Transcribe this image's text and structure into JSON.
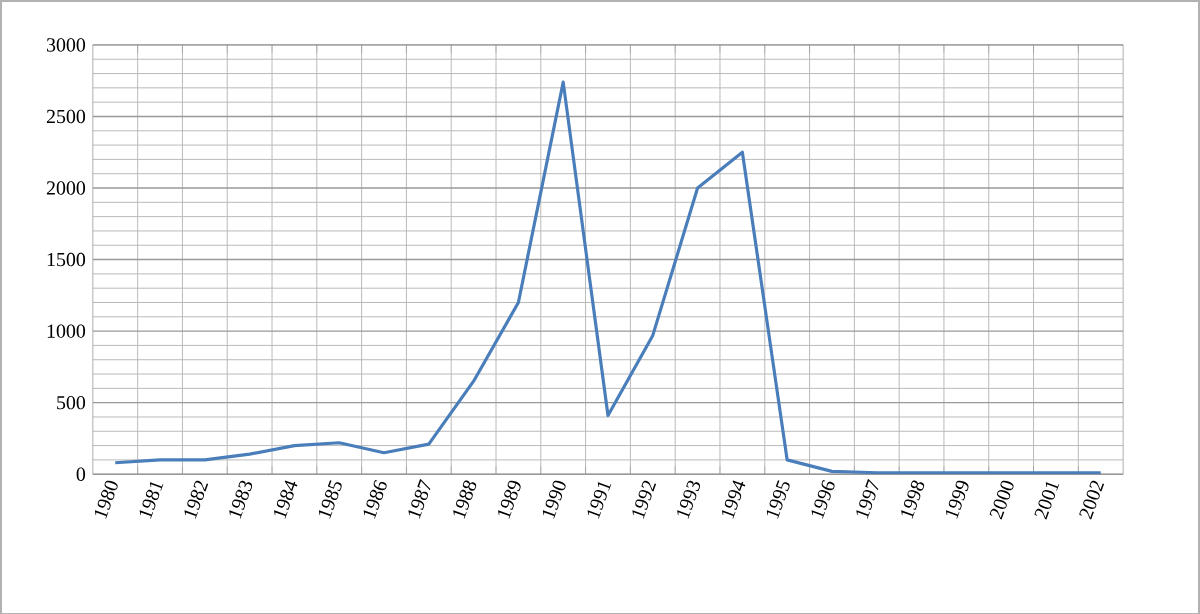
{
  "chart_data": {
    "type": "line",
    "categories": [
      "1980",
      "1981",
      "1982",
      "1983",
      "1984",
      "1985",
      "1986",
      "1987",
      "1988",
      "1989",
      "1990",
      "1991",
      "1992",
      "1993",
      "1994",
      "1995",
      "1996",
      "1997",
      "1998",
      "1999",
      "2000",
      "2001",
      "2002"
    ],
    "series": [
      {
        "color": "#4a7ebb",
        "values": [
          80,
          100,
          100,
          140,
          200,
          220,
          150,
          210,
          650,
          1200,
          2740,
          410,
          970,
          2000,
          2250,
          100,
          20,
          10,
          10,
          10,
          10,
          10,
          10
        ]
      }
    ],
    "ylim": [
      0,
      3000
    ],
    "yticks": [
      0,
      500,
      1000,
      1500,
      2000,
      2500,
      3000
    ],
    "grid": true
  }
}
